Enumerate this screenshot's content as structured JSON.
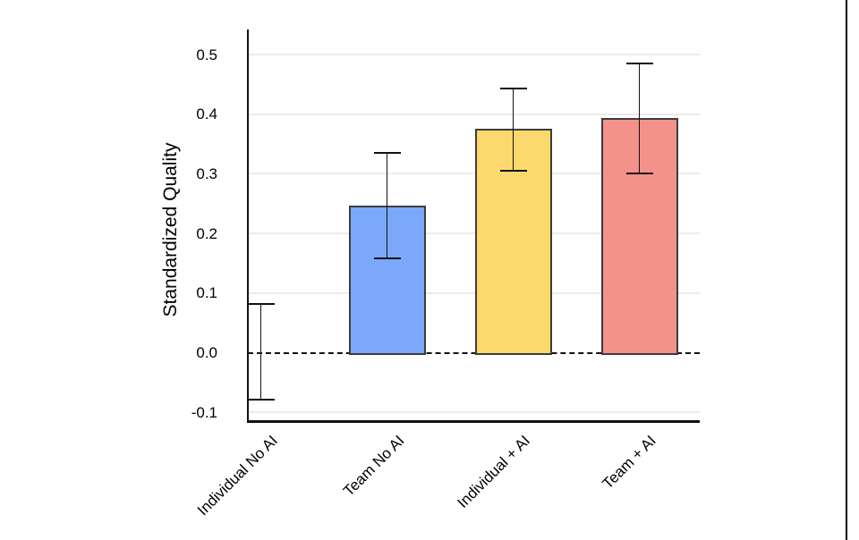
{
  "chart_data": {
    "type": "bar",
    "title": "",
    "ylabel": "Standardized Quality",
    "xlabel": "",
    "categories": [
      "Individual No AI",
      "Team No AI",
      "Individual + AI",
      "Team + AI"
    ],
    "values": [
      0,
      0.247,
      0.375,
      0.393
    ],
    "ci_low": [
      -0.078,
      0.158,
      0.305,
      0.301
    ],
    "ci_high": [
      0.082,
      0.335,
      0.443,
      0.485
    ],
    "bar_colors": [
      null,
      "#7CA8FB",
      "#FCD96C",
      "#F3928A"
    ],
    "bar_border_color": "#3C3C3C",
    "error_bar_color": "#111111",
    "yticks": [
      {
        "value": 0.5,
        "label": "0.5"
      },
      {
        "value": 0.4,
        "label": "0.4"
      },
      {
        "value": 0.3,
        "label": "0.3"
      },
      {
        "value": 0.2,
        "label": "0.2"
      },
      {
        "value": 0.1,
        "label": "0.1"
      },
      {
        "value": 0.0,
        "label": "0.0"
      },
      {
        "value": -0.1,
        "label": "-0.1"
      }
    ],
    "ylim": [
      -0.113,
      0.542
    ],
    "zero_line": {
      "value": 0,
      "style": "dashed",
      "color": "#111111"
    },
    "grid": true,
    "gridline_color": "#EBEBEB",
    "legend": null,
    "background": "#FFFFFF"
  },
  "decorations": {
    "right_edge_line_color": "#000000"
  }
}
